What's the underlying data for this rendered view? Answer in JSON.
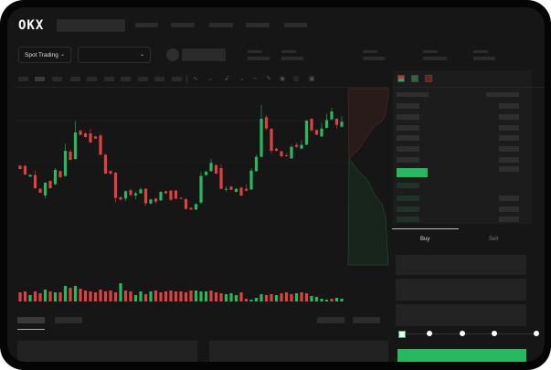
{
  "header": {
    "logo": "OKX"
  },
  "market_bar": {
    "mode_dropdown": "Spot Trading"
  },
  "trade_panel": {
    "tabs": [
      "Buy",
      "Sell"
    ],
    "active_tab": "Buy",
    "leverage_slider": 0
  },
  "colors": {
    "up": "#26b95f",
    "down": "#e0403f",
    "background": "#161616",
    "panel": "#1c1c1c"
  },
  "icons": [
    "okx-logo",
    "chevron-down-icon",
    "indicator-icon",
    "line-icon",
    "ruler-icon",
    "camera-icon",
    "settings-icon",
    "fullscreen-icon",
    "orderbook-both-icon",
    "orderbook-buy-icon",
    "orderbook-sell-icon"
  ],
  "candles": [
    [
      186,
      188,
      173,
      175
    ],
    [
      185,
      188,
      155,
      157
    ],
    [
      150,
      156,
      150,
      156
    ],
    [
      155,
      170,
      110,
      112
    ],
    [
      110,
      112,
      95,
      97
    ],
    [
      88,
      132,
      78,
      130
    ],
    [
      136,
      138,
      110,
      112
    ],
    [
      125,
      178,
      122,
      172
    ],
    [
      168,
      170,
      144,
      148
    ],
    [
      152,
      258,
      150,
      235
    ],
    [
      232,
      240,
      204,
      205
    ],
    [
      208,
      332,
      206,
      295
    ],
    [
      300,
      304,
      285,
      287
    ],
    [
      292,
      296,
      278,
      280
    ],
    [
      292,
      307,
      260,
      262
    ],
    [
      282,
      284,
      274,
      275
    ],
    [
      285,
      292,
      220,
      222
    ],
    [
      222,
      226,
      158,
      160
    ],
    [
      168,
      172,
      155,
      160
    ],
    [
      163,
      165,
      65,
      80
    ],
    [
      82,
      85,
      72,
      75
    ],
    [
      78,
      105,
      70,
      102
    ],
    [
      105,
      110,
      85,
      90
    ],
    [
      88,
      102,
      75,
      95
    ],
    [
      95,
      115,
      94,
      108
    ],
    [
      110,
      112,
      55,
      62
    ],
    [
      62,
      77,
      58,
      75
    ],
    [
      78,
      80,
      62,
      68
    ],
    [
      72,
      102,
      70,
      100
    ],
    [
      102,
      104,
      93,
      95
    ],
    [
      104,
      106,
      70,
      74
    ],
    [
      104,
      106,
      74,
      78
    ],
    [
      80,
      82,
      76,
      78
    ],
    [
      76,
      80,
      42,
      44
    ],
    [
      47,
      50,
      40,
      42
    ],
    [
      42,
      62,
      40,
      60
    ],
    [
      65,
      165,
      60,
      152
    ],
    [
      155,
      170,
      153,
      166
    ],
    [
      168,
      208,
      165,
      195
    ],
    [
      188,
      190,
      158,
      160
    ],
    [
      178,
      190,
      108,
      110
    ],
    [
      108,
      118,
      100,
      110
    ],
    [
      117,
      119,
      105,
      107
    ],
    [
      100,
      112,
      98,
      110
    ],
    [
      114,
      116,
      85,
      88
    ],
    [
      110,
      125,
      102,
      104
    ],
    [
      108,
      178,
      106,
      170
    ],
    [
      168,
      222,
      166,
      215
    ],
    [
      215,
      385,
      213,
      340
    ],
    [
      345,
      352,
      302,
      308
    ],
    [
      307,
      310,
      225,
      235
    ],
    [
      242,
      244,
      232,
      235
    ],
    [
      233,
      235,
      213,
      217
    ],
    [
      220,
      228,
      216,
      218
    ],
    [
      210,
      254,
      208,
      248
    ],
    [
      254,
      262,
      244,
      248
    ],
    [
      242,
      270,
      240,
      254
    ],
    [
      255,
      336,
      253,
      334
    ],
    [
      340,
      342,
      298,
      302
    ],
    [
      303,
      305,
      286,
      288
    ],
    [
      282,
      328,
      280,
      308
    ],
    [
      310,
      356,
      308,
      336
    ],
    [
      338,
      376,
      336,
      364
    ],
    [
      340,
      342,
      308,
      320
    ],
    [
      314,
      348,
      312,
      330
    ]
  ],
  "volumes": [
    10,
    11,
    7,
    11,
    9,
    13,
    11,
    10,
    10,
    17,
    15,
    17,
    14,
    12,
    11,
    10,
    13,
    11,
    12,
    10,
    20,
    12,
    11,
    7,
    11,
    8,
    11,
    12,
    10,
    11,
    12,
    11,
    11,
    10,
    12,
    12,
    11,
    11,
    12,
    10,
    9,
    8,
    9,
    7,
    10,
    3,
    2,
    4,
    8,
    7,
    8,
    7,
    9,
    10,
    8,
    9,
    10,
    9,
    6,
    5,
    3,
    2,
    3,
    4,
    3
  ],
  "volume_up": [
    0,
    0,
    1,
    0,
    0,
    1,
    0,
    1,
    0,
    1,
    0,
    1,
    0,
    0,
    0,
    0,
    0,
    0,
    0,
    0,
    1,
    0,
    0,
    1,
    1,
    0,
    1,
    0,
    0,
    0,
    0,
    0,
    0,
    0,
    0,
    1,
    1,
    1,
    0,
    0,
    0,
    1,
    1,
    1,
    0,
    0,
    1,
    1,
    1,
    0,
    0,
    1,
    0,
    0,
    0,
    1,
    0,
    0,
    1,
    1,
    1,
    1,
    0,
    1,
    1
  ]
}
